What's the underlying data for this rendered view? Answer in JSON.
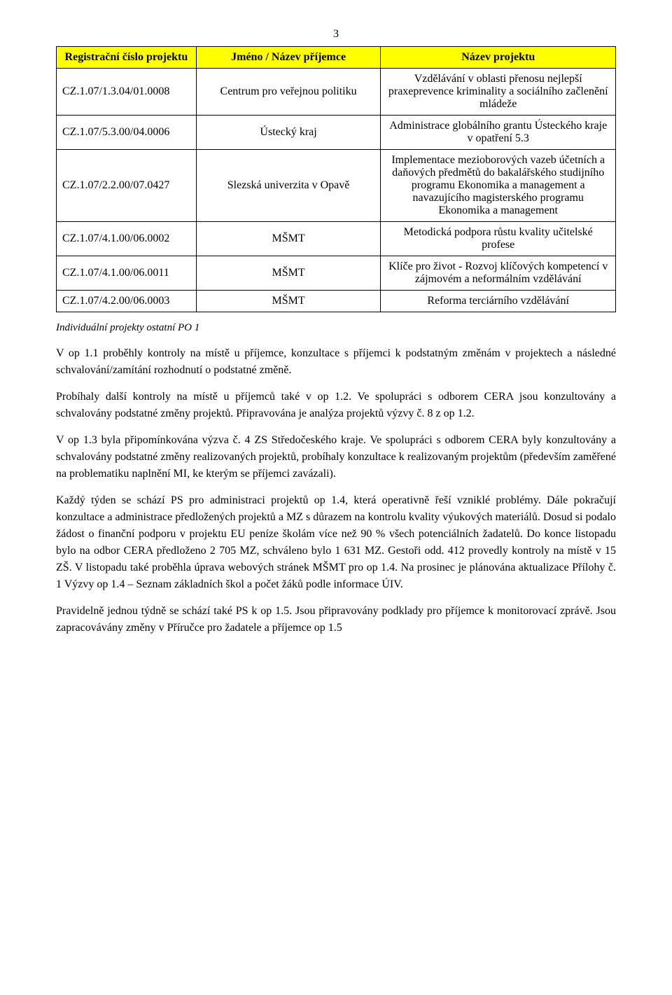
{
  "page_number": "3",
  "table": {
    "header_bg": "#ffff00",
    "border_color": "#000000",
    "columns": [
      "Registrační číslo projektu",
      "Jméno / Název příjemce",
      "Název projektu"
    ],
    "rows": [
      {
        "id": "CZ.1.07/1.3.04/01.0008",
        "recipient": "Centrum pro veřejnou politiku",
        "project": "Vzdělávání v oblasti přenosu nejlepší praxeprevence kriminality a sociálního začlenění mládeže"
      },
      {
        "id": "CZ.1.07/5.3.00/04.0006",
        "recipient": "Ústecký kraj",
        "project": "Administrace globálního grantu Ústeckého kraje v opatření 5.3"
      },
      {
        "id": "CZ.1.07/2.2.00/07.0427",
        "recipient": "Slezská univerzita v Opavě",
        "project": "Implementace mezioborových vazeb účetních a daňových předmětů do bakalářského studijního programu Ekonomika a management a navazujícího magisterského programu Ekonomika a management"
      },
      {
        "id": "CZ.1.07/4.1.00/06.0002",
        "recipient": "MŠMT",
        "project": "Metodická podpora růstu kvality učitelské profese"
      },
      {
        "id": "CZ.1.07/4.1.00/06.0011",
        "recipient": "MŠMT",
        "project": "Klíče pro život - Rozvoj klíčových kompetencí v zájmovém a neformálním vzdělávání"
      },
      {
        "id": "CZ.1.07/4.2.00/06.0003",
        "recipient": "MŠMT",
        "project": "Reforma terciárního vzdělávání"
      }
    ]
  },
  "table_caption": "Individuální projekty ostatní PO 1",
  "paragraphs": [
    "V op 1.1 proběhly kontroly na místě u příjemce, konzultace s příjemci k podstatným změnám v projektech a následné schvalování/zamítání rozhodnutí o podstatné změně.",
    "Probíhaly další kontroly na místě u příjemců také v op 1.2. Ve spolupráci s odborem CERA jsou konzultovány a schvalovány podstatné změny projektů. Připravována je analýza projektů výzvy č. 8 z op 1.2.",
    "V op 1.3 byla připomínkována výzva č. 4 ZS Středočeského kraje. Ve spolupráci s odborem CERA byly konzultovány a schvalovány podstatné změny realizovaných projektů, probíhaly konzultace k realizovaným projektům (především zaměřené na problematiku naplnění MI, ke kterým se příjemci zavázali).",
    "Každý týden se schází PS pro administraci projektů op 1.4, která operativně řeší vzniklé problémy. Dále pokračují konzultace a administrace předložených projektů a MZ s důrazem na kontrolu kvality výukových materiálů. Dosud si podalo žádost o finanční podporu v projektu EU peníze školám více než 90 % všech potenciálních žadatelů. Do konce listopadu bylo na odbor CERA předloženo 2 705 MZ, schváleno bylo 1 631 MZ. Gestoři odd. 412 provedly kontroly na místě v 15 ZŠ. V listopadu také proběhla úprava webových stránek MŠMT pro op 1.4. Na prosinec je plánována aktualizace Přílohy č. 1 Výzvy op 1.4 – Seznam základních škol a počet žáků podle informace ÚIV.",
    "Pravidelně jednou týdně se schází také PS k op 1.5. Jsou připravovány podklady pro příjemce k monitorovací zprávě. Jsou zapracovávány změny v Příručce pro žadatele a příjemce op 1.5"
  ]
}
